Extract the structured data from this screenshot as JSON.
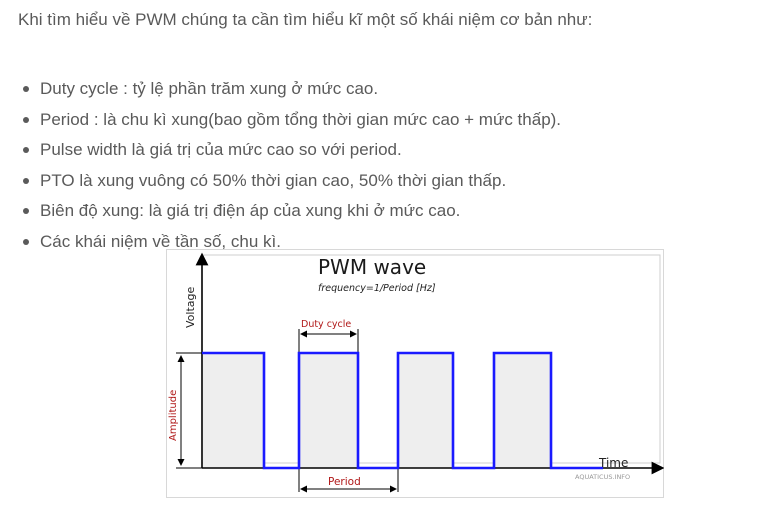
{
  "intro": "Khi tìm hiểu về PWM chúng ta cần tìm hiểu kĩ một số khái niệm cơ bản như:",
  "bullets": [
    "Duty cycle : tỷ lệ phần trăm xung ở mức cao.",
    "Period : là chu kì xung(bao gồm tổng thời gian mức cao + mức thấp).",
    "Pulse width là giá trị của mức cao so với period.",
    "PTO là xung vuông có 50% thời gian cao, 50% thời gian thấp.",
    "Biên độ xung: là giá trị điện áp của xung khi ở mức cao.",
    "Các khái niệm về tần số, chu kì."
  ],
  "figure": {
    "title": "PWM wave",
    "subtitle": "frequency=1/Period [Hz]",
    "y_axis_label": "Voltage",
    "x_axis_label": "Time",
    "duty_cycle_label": "Duty cycle",
    "period_label": "Period",
    "amplitude_label": "Amplitude",
    "watermark": "AQUATICUS.INFO",
    "colors": {
      "wave": "#1a1aff",
      "annotation": "#b01818",
      "axis": "#000000",
      "pulse_fill": "#eeeeee",
      "frame": "#d8d8d8"
    }
  }
}
